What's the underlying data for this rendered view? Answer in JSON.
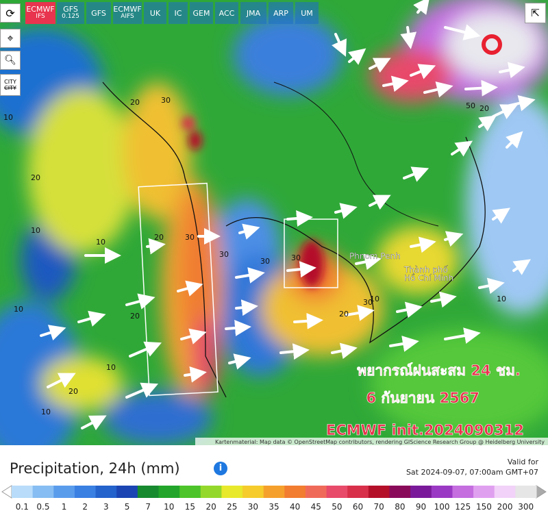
{
  "toolbar": {
    "models": [
      {
        "label": "ECMWF",
        "sub": "IFS"
      },
      {
        "label": "GFS",
        "sub": "0.125"
      },
      {
        "label": "GFS"
      },
      {
        "label": "ECMWF",
        "sub": "AIFS"
      },
      {
        "label": "UK"
      },
      {
        "label": "IC"
      },
      {
        "label": "GEM"
      },
      {
        "label": "ACC"
      },
      {
        "label": "JMA"
      },
      {
        "label": "ARP"
      },
      {
        "label": "UM"
      }
    ]
  },
  "tools": {
    "city": "CITY"
  },
  "map": {
    "places": [
      "Phnom Penh",
      "Thành phố",
      "Hồ Chí Minh"
    ],
    "contours": [
      "20",
      "30",
      "10",
      "20",
      "20",
      "30",
      "30",
      "10",
      "10",
      "20",
      "10",
      "30",
      "30",
      "20",
      "10",
      "10",
      "20",
      "10",
      "30",
      "50",
      "20",
      "10"
    ],
    "overlay": {
      "line1": "พยากรณ์ฝนสะสม 24 ชม.",
      "line2": "6 กันยายน 2567",
      "line3": "ECMWF init.2024090312"
    },
    "attribution": "Kartenmaterial: Map data © OpenStreetMap contributors, rendering GIScience Research Group @ Heidelberg University"
  },
  "legend": {
    "title": "Precipitation, 24h (mm)",
    "valid_for": "Valid for",
    "valid_time": "Sat 2024-09-07, 07:00am GMT+07",
    "items": [
      {
        "value": 0.1,
        "color": "#b8dcfa"
      },
      {
        "value": 0.5,
        "color": "#86bdf2"
      },
      {
        "value": 1,
        "color": "#5a9cec"
      },
      {
        "value": 2,
        "color": "#3a7fe2"
      },
      {
        "value": 3,
        "color": "#2462cc"
      },
      {
        "value": 5,
        "color": "#1a45b2"
      },
      {
        "value": 7,
        "color": "#178a30"
      },
      {
        "value": 10,
        "color": "#22a52a"
      },
      {
        "value": 15,
        "color": "#4cc42a"
      },
      {
        "value": 20,
        "color": "#94d82c"
      },
      {
        "value": 25,
        "color": "#e8e82c"
      },
      {
        "value": 30,
        "color": "#f5cc2c"
      },
      {
        "value": 35,
        "color": "#f5a02c"
      },
      {
        "value": 40,
        "color": "#f27c30"
      },
      {
        "value": 45,
        "color": "#f06a5a"
      },
      {
        "value": 50,
        "color": "#e84a6a"
      },
      {
        "value": 60,
        "color": "#d8304a"
      },
      {
        "value": 70,
        "color": "#b4102a"
      },
      {
        "value": 80,
        "color": "#8a0a5a"
      },
      {
        "value": 90,
        "color": "#7a1a9a"
      },
      {
        "value": 100,
        "color": "#9a3ac4"
      },
      {
        "value": 125,
        "color": "#c46ee0"
      },
      {
        "value": 150,
        "color": "#e0a0f0"
      },
      {
        "value": 200,
        "color": "#f2d2f8"
      },
      {
        "value": 300,
        "color": "#e6e6e6"
      }
    ]
  }
}
